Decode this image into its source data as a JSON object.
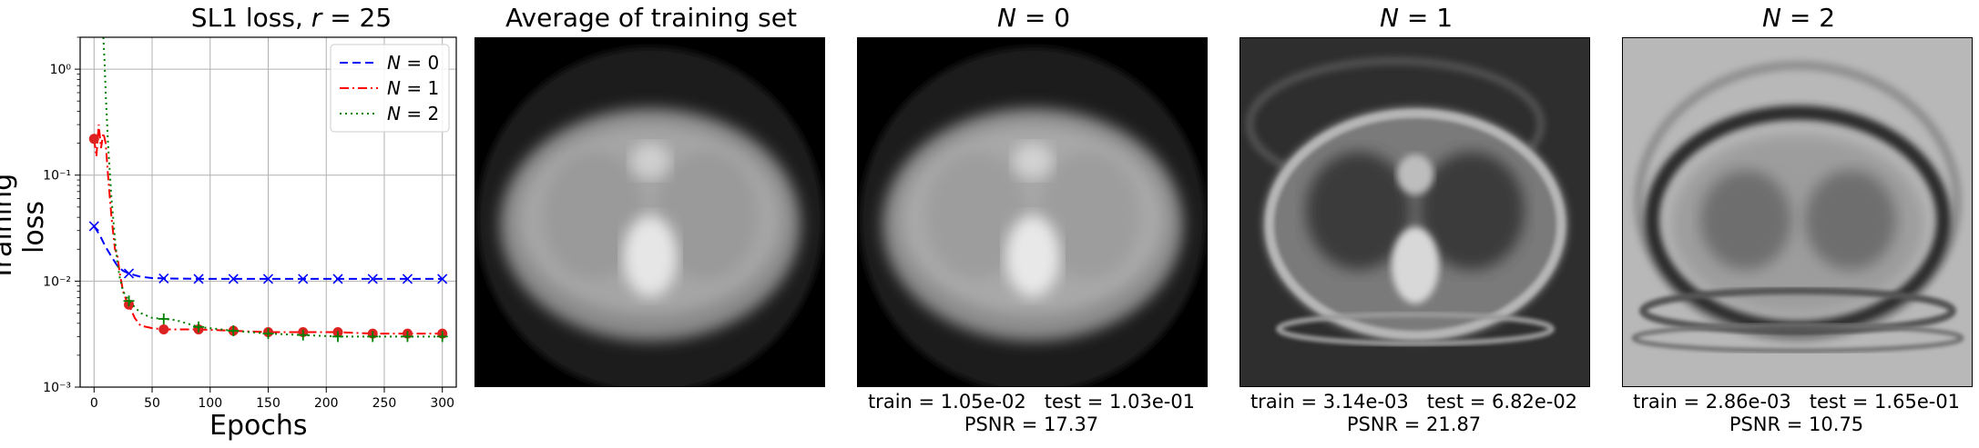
{
  "colors": {
    "n0": "#0000ff",
    "n1": "#ff0000",
    "n2": "#008000",
    "grid": "#b0b0b0",
    "marker_n1": "#dd2222"
  },
  "chart_data": [
    {
      "type": "line",
      "title_prefix": "SL1 loss, ",
      "title_var": "r",
      "title_suffix": " = 25",
      "xlabel": "Epochs",
      "ylabel": "Training loss",
      "xlim": [
        -12,
        312
      ],
      "ylim": [
        0.001,
        2.0
      ],
      "yscale": "log",
      "grid": true,
      "legend_placement": "top-right",
      "x_ticks": [
        0,
        50,
        100,
        150,
        200,
        250,
        300
      ],
      "x_tick_labels": [
        "0",
        "50",
        "100",
        "150",
        "200",
        "250",
        "300"
      ],
      "y_ticks": [
        0.001,
        0.01,
        0.1,
        1.0
      ],
      "y_tick_labels": [
        "10⁻³",
        "10⁻²",
        "10⁻¹",
        "10⁰"
      ],
      "series": [
        {
          "name": "N = 0",
          "name_var": "N",
          "name_val": " = 0",
          "style": "dashed",
          "marker": "x",
          "color_key": "n0",
          "x": [
            0,
            5,
            10,
            15,
            20,
            25,
            30,
            40,
            50,
            60,
            90,
            120,
            150,
            180,
            210,
            240,
            270,
            300
          ],
          "y": [
            0.033,
            0.027,
            0.021,
            0.017,
            0.014,
            0.0125,
            0.0118,
            0.011,
            0.0107,
            0.0106,
            0.0105,
            0.0105,
            0.0105,
            0.0105,
            0.0105,
            0.0105,
            0.0105,
            0.0105
          ],
          "marker_x": [
            0,
            30,
            60,
            90,
            120,
            150,
            180,
            210,
            240,
            270,
            300
          ]
        },
        {
          "name": "N = 1",
          "name_var": "N",
          "name_val": " = 1",
          "style": "dashdot",
          "marker": "o",
          "color_key": "n1",
          "x": [
            0,
            2,
            4,
            6,
            8,
            10,
            12,
            15,
            18,
            20,
            22,
            25,
            28,
            30,
            35,
            40,
            50,
            60,
            90,
            120,
            150,
            180,
            210,
            240,
            270,
            300
          ],
          "y": [
            0.22,
            0.15,
            0.3,
            0.18,
            0.25,
            0.2,
            0.1,
            0.04,
            0.02,
            0.018,
            0.012,
            0.008,
            0.0065,
            0.006,
            0.0045,
            0.0038,
            0.0036,
            0.0035,
            0.0035,
            0.0034,
            0.0033,
            0.0033,
            0.0033,
            0.0032,
            0.0032,
            0.0032
          ],
          "marker_x": [
            0,
            30,
            60,
            90,
            120,
            150,
            180,
            210,
            240,
            270,
            300
          ],
          "marker_y": [
            0.22,
            0.006,
            0.0035,
            0.0035,
            0.0034,
            0.0033,
            0.0033,
            0.0033,
            0.0032,
            0.0032,
            0.0032
          ]
        },
        {
          "name": "N = 2",
          "name_var": "N",
          "name_val": " = 2",
          "style": "dotted",
          "marker": "+",
          "color_key": "n2",
          "x": [
            8,
            9,
            10,
            12,
            15,
            18,
            20,
            22,
            25,
            30,
            40,
            50,
            60,
            70,
            90,
            120,
            150,
            180,
            210,
            240,
            270,
            300
          ],
          "y": [
            2.0,
            1.2,
            0.6,
            0.2,
            0.06,
            0.025,
            0.015,
            0.011,
            0.008,
            0.0065,
            0.005,
            0.0045,
            0.0044,
            0.0043,
            0.0037,
            0.0034,
            0.0032,
            0.0031,
            0.003,
            0.003,
            0.003,
            0.003
          ],
          "marker_x": [
            30,
            60,
            90,
            120,
            150,
            180,
            210,
            240,
            270,
            300
          ],
          "marker_y": [
            0.0065,
            0.0044,
            0.0037,
            0.0034,
            0.0032,
            0.0031,
            0.003,
            0.003,
            0.003,
            0.003
          ]
        }
      ]
    },
    {
      "type": "table",
      "panels": [
        {
          "title": "Average of training set",
          "has_var": false
        },
        {
          "title_var": "N",
          "title_val": " = 0",
          "has_var": true,
          "caption_line1": "train = 1.05e-02   test = 1.03e-01",
          "caption_line2": "PSNR = 17.37",
          "train": 0.0105,
          "test": 0.103,
          "psnr": 17.37
        },
        {
          "title_var": "N",
          "title_val": " = 1",
          "has_var": true,
          "caption_line1": "train = 3.14e-03   test = 6.82e-02",
          "caption_line2": "PSNR = 21.87",
          "train": 0.00314,
          "test": 0.0682,
          "psnr": 21.87
        },
        {
          "title_var": "N",
          "title_val": " = 2",
          "has_var": true,
          "caption_line1": "train = 2.86e-03   test = 1.65e-01",
          "caption_line2": "PSNR = 10.75",
          "train": 0.00286,
          "test": 0.165,
          "psnr": 10.75
        }
      ]
    }
  ]
}
